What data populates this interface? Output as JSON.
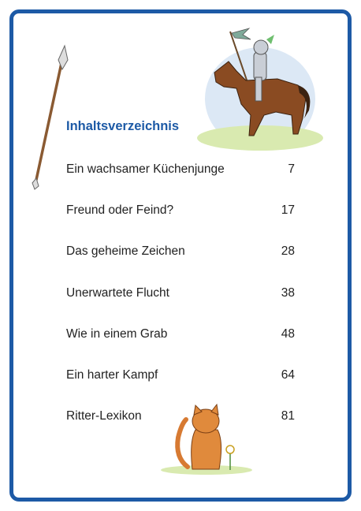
{
  "header": {
    "title": "Inhaltsverzeichnis"
  },
  "entries": [
    {
      "title": "Ein wachsamer Küchenjunge",
      "page": 7
    },
    {
      "title": "Freund oder Feind?",
      "page": 17
    },
    {
      "title": "Das geheime Zeichen",
      "page": 28
    },
    {
      "title": "Unerwartete Flucht",
      "page": 38
    },
    {
      "title": "Wie in einem Grab",
      "page": 48
    },
    {
      "title": "Ein harter Kampf",
      "page": 64
    },
    {
      "title": "Ritter-Lexikon",
      "page": 81
    }
  ]
}
